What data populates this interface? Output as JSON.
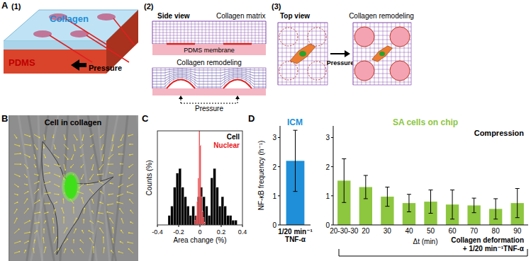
{
  "panel_labels": [
    "A",
    "B",
    "C",
    "D"
  ],
  "panel_a": {
    "steps": [
      "(1)",
      "(2)",
      "(3)"
    ],
    "collagen": "Collagen",
    "pdms": "PDMS",
    "pressure": "Pressure",
    "side_view": "Side view",
    "collagen_matrix": "Collagen matrix",
    "pdms_membrane": "PDMS membrane",
    "collagen_remodeling": "Collagen remodeling",
    "top_view": "Top view"
  },
  "panel_b": {
    "title": "Cell in collagen"
  },
  "chart_data": [
    {
      "type": "histogram",
      "x_label": "Area change (%)",
      "y_label": "Counts (%)",
      "xlim": [
        -0.4,
        0.4
      ],
      "xticks": [
        -0.4,
        -0.2,
        0,
        0.2,
        0.4
      ],
      "ylim": [
        0,
        10
      ],
      "tick_labels": "x",
      "grid": false,
      "legend": "top-right",
      "series": [
        {
          "name": "Cell",
          "color": "#000000",
          "bins": [
            -0.3,
            -0.275,
            -0.25,
            -0.225,
            -0.2,
            -0.175,
            -0.15,
            -0.125,
            -0.1,
            -0.075,
            -0.05,
            -0.025,
            0,
            0.025,
            0.05,
            0.075,
            0.1,
            0.125,
            0.15,
            0.175,
            0.2,
            0.225,
            0.25,
            0.275,
            0.3,
            0.325,
            0.35
          ],
          "values": [
            1,
            2,
            4,
            5.5,
            6,
            4,
            3,
            2,
            1,
            2,
            1,
            3,
            4,
            3,
            2,
            1,
            5,
            6,
            4,
            2,
            3,
            2,
            1,
            1,
            0.5,
            0.5
          ]
        },
        {
          "name": "Nuclear",
          "color": "#e8161b",
          "bins": [
            -0.05,
            -0.04,
            -0.03,
            -0.02,
            -0.01,
            0,
            0.01,
            0.02,
            0.03,
            0.04,
            0.05
          ],
          "values": [
            0.5,
            1,
            2.5,
            5,
            10,
            8.5,
            3,
            1.5,
            0.8,
            0.3
          ]
        }
      ]
    },
    {
      "type": "bar",
      "title": "ICM",
      "y_label": "NF-κB frequency (h⁻¹)",
      "x_label": [
        "1/20 min⁻¹",
        "TNF-α"
      ],
      "categories": [
        null
      ],
      "values": [
        2.2
      ],
      "errors": [
        1.05
      ],
      "color": "#1e8fd8",
      "ylim": [
        0,
        3.4
      ],
      "yticks": [
        0,
        1,
        2,
        3
      ],
      "grid": false
    },
    {
      "type": "bar",
      "title": "SA cells on chip",
      "annotations": [
        "Compression"
      ],
      "x_label": "Δt (min)",
      "bracket_label": [
        "Collagen deformation",
        "+ 1/20 min⁻¹TNF-α"
      ],
      "categories": [
        "20-30-30",
        "20",
        "30",
        "40",
        "50",
        "60",
        "70",
        "80",
        "90"
      ],
      "values": [
        1.52,
        1.3,
        0.97,
        0.75,
        0.8,
        0.7,
        0.67,
        0.55,
        0.75
      ],
      "errors": [
        0.75,
        0.4,
        0.33,
        0.3,
        0.4,
        0.5,
        0.25,
        0.35,
        0.5
      ],
      "color": "#8dc63f",
      "ylim": [
        0,
        3.4
      ],
      "yticks": [
        0,
        1,
        2,
        3
      ],
      "grid": false
    }
  ]
}
